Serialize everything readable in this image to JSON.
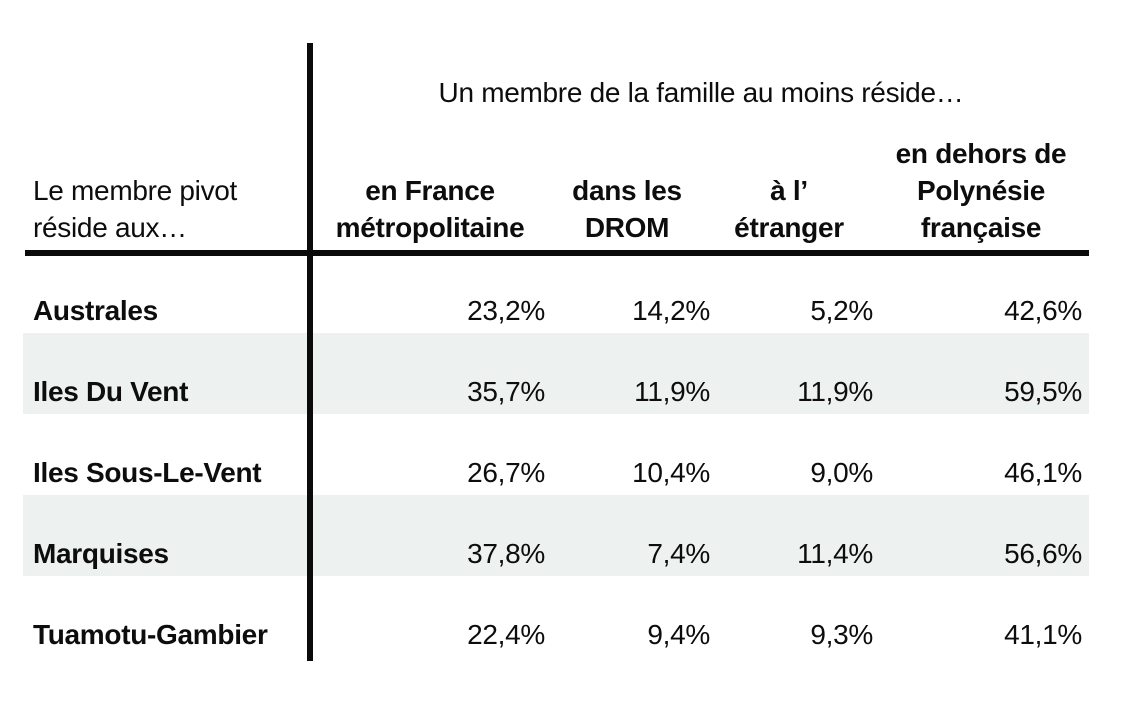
{
  "table": {
    "group_header": "Un membre de la famille au moins réside…",
    "corner": {
      "line1": "Le membre pivot",
      "line2": "réside aux…"
    },
    "columns": [
      {
        "lines": [
          "en France",
          "métropolitaine"
        ]
      },
      {
        "lines": [
          "dans les",
          "DROM"
        ]
      },
      {
        "lines": [
          "à l’",
          "étranger"
        ]
      },
      {
        "lines": [
          "en dehors de",
          "Polynésie",
          "française"
        ]
      }
    ],
    "rows": [
      {
        "label": "Australes",
        "values": [
          "23,2%",
          "14,2%",
          "5,2%",
          "42,6%"
        ]
      },
      {
        "label": "Iles Du Vent",
        "values": [
          "35,7%",
          "11,9%",
          "11,9%",
          "59,5%"
        ]
      },
      {
        "label": "Iles Sous-Le-Vent",
        "values": [
          "26,7%",
          "10,4%",
          "9,0%",
          "46,1%"
        ]
      },
      {
        "label": "Marquises",
        "values": [
          "37,8%",
          "7,4%",
          "11,4%",
          "56,6%"
        ]
      },
      {
        "label": "Tuamotu-Gambier",
        "values": [
          "22,4%",
          "9,4%",
          "9,3%",
          "41,1%"
        ]
      }
    ],
    "colors": {
      "stripe": "#edf1f0",
      "rule": "#0b0b0b",
      "text": "#0d0d0d",
      "background": "#ffffff"
    }
  },
  "chart_data": {
    "type": "table",
    "title": "Un membre de la famille au moins réside…",
    "row_header_label": "Le membre pivot réside aux…",
    "columns": [
      "en France métropolitaine",
      "dans les DROM",
      "à l’étranger",
      "en dehors de Polynésie française"
    ],
    "row_categories": [
      "Australes",
      "Iles Du Vent",
      "Iles Sous-Le-Vent",
      "Marquises",
      "Tuamotu-Gambier"
    ],
    "values_percent": [
      [
        23.2,
        14.2,
        5.2,
        42.6
      ],
      [
        35.7,
        11.9,
        11.9,
        59.5
      ],
      [
        26.7,
        10.4,
        9.0,
        46.1
      ],
      [
        37.8,
        7.4,
        11.4,
        56.6
      ],
      [
        22.4,
        9.4,
        9.3,
        41.1
      ]
    ],
    "layout_hints": {
      "striped_rows": [
        1,
        3
      ],
      "value_alignment": "right",
      "header_alignment": "center"
    }
  }
}
